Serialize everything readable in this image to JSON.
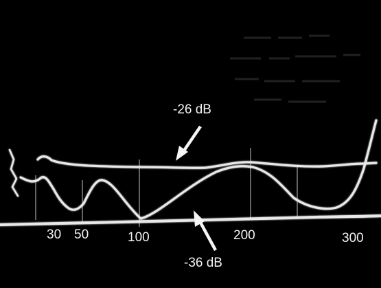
{
  "annotations": {
    "upper_trace_label": "-26 dB",
    "lower_trace_label": "-36 dB"
  },
  "x_axis_ticks": [
    "30",
    "50",
    "100",
    "200",
    "300"
  ],
  "colors": {
    "background": "#000000",
    "trace": "#e9e9e9",
    "text": "#f2f2f2"
  }
}
